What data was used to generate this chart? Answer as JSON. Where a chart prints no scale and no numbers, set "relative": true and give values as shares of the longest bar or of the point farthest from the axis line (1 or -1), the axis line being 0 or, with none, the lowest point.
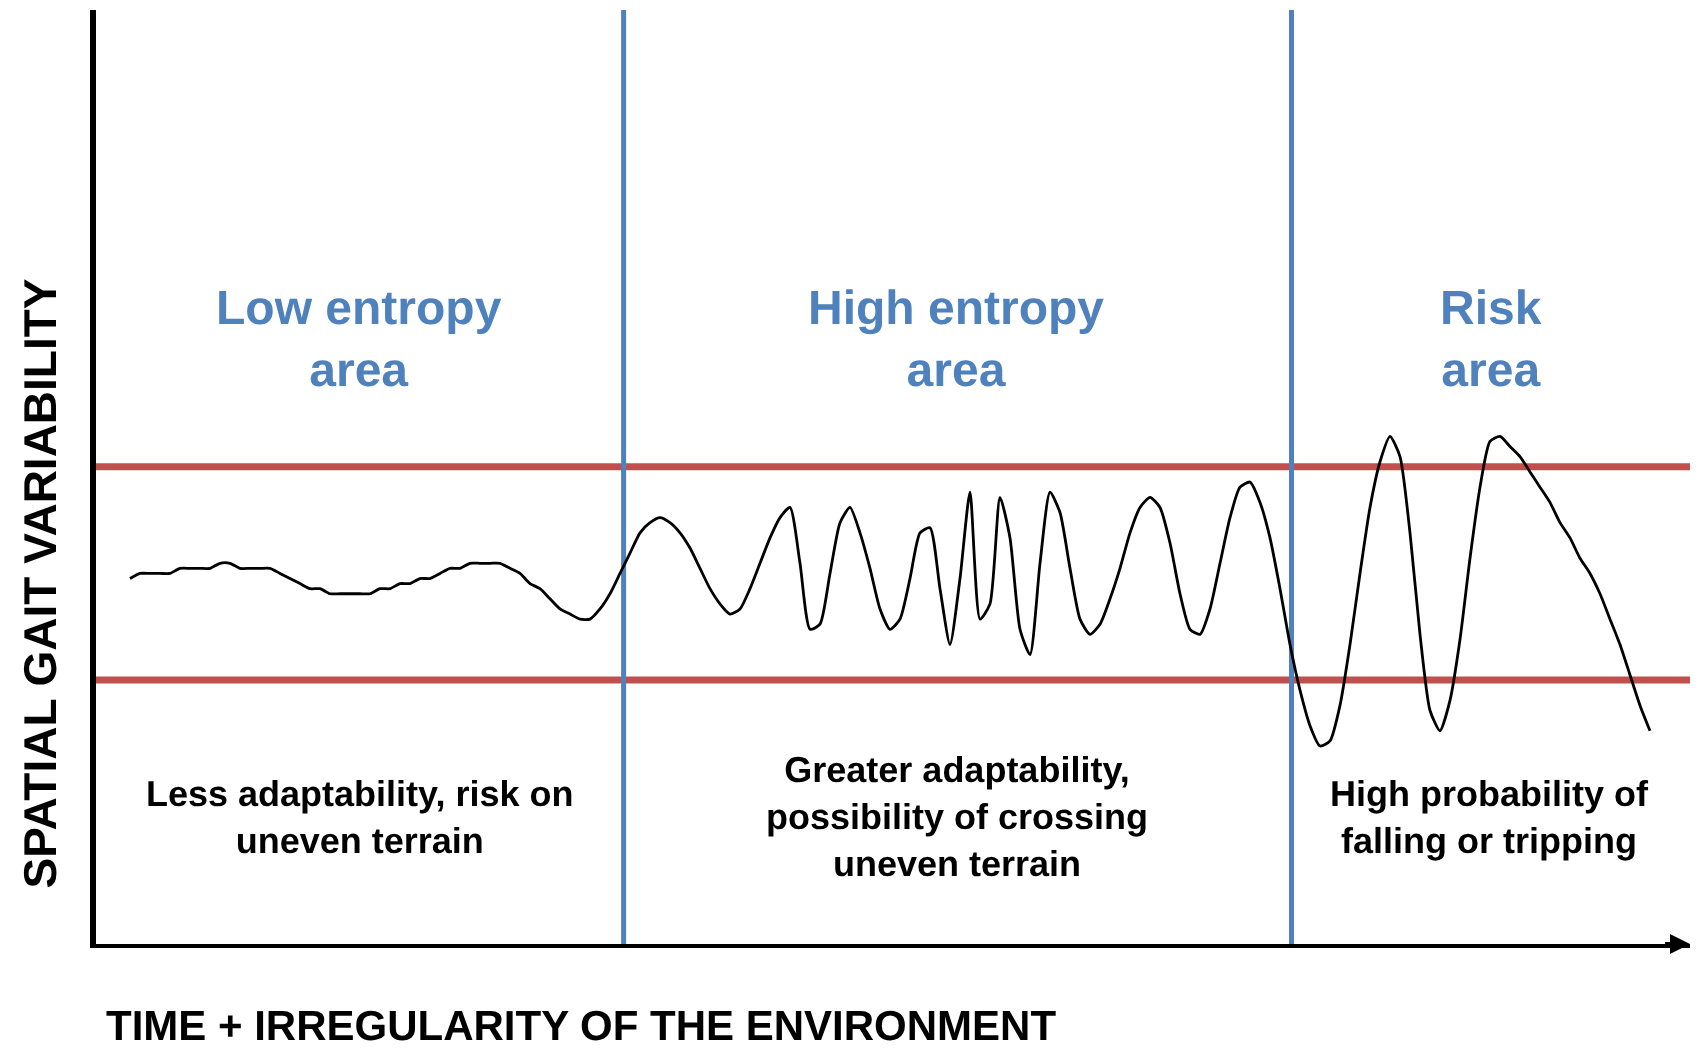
{
  "chart_data": {
    "type": "line",
    "relative": true,
    "xlabel": "TIME + IRREGULARITY OF THE ENVIRONMENT",
    "ylabel": "SPATIAL GAIT VARIABILITY",
    "categories": [
      null,
      null,
      null,
      null,
      null,
      null,
      null,
      null,
      null,
      null,
      null,
      null,
      null,
      null,
      null,
      null,
      null,
      null,
      null,
      null,
      null,
      null,
      null,
      null,
      null,
      null,
      null,
      null,
      null,
      null,
      null,
      null,
      null,
      null,
      null,
      null,
      null,
      null,
      null,
      null,
      null,
      null,
      null,
      null,
      null,
      null,
      null,
      null,
      null,
      null,
      null,
      null,
      null,
      null,
      null,
      null,
      null,
      null,
      null,
      null,
      null,
      null,
      null,
      null,
      null,
      null,
      null,
      null,
      null,
      null,
      null,
      null,
      null,
      null,
      null,
      null,
      null,
      null,
      null,
      null,
      null,
      null,
      null,
      null,
      null,
      null,
      null,
      null,
      null,
      null,
      null,
      null,
      null,
      null,
      null,
      null,
      null,
      null,
      null,
      null,
      null,
      null,
      null,
      null,
      null,
      null,
      null,
      null,
      null,
      null,
      null,
      null,
      null,
      null,
      null,
      null,
      null,
      null,
      null,
      null,
      null,
      null,
      null,
      null,
      null,
      null,
      null,
      null,
      null,
      null,
      null,
      null,
      null,
      null,
      null,
      null,
      null,
      null,
      null,
      null,
      null,
      null,
      null,
      null,
      null,
      null,
      null,
      null,
      null,
      null,
      null,
      null,
      null
    ],
    "color": "#000000",
    "values": [
      0.72,
      0.73,
      0.73,
      0.73,
      0.73,
      0.74,
      0.74,
      0.74,
      0.74,
      0.75,
      0.75,
      0.74,
      0.74,
      0.74,
      0.74,
      0.73,
      0.72,
      0.71,
      0.7,
      0.7,
      0.69,
      0.69,
      0.69,
      0.69,
      0.69,
      0.7,
      0.7,
      0.71,
      0.71,
      0.72,
      0.72,
      0.73,
      0.74,
      0.74,
      0.75,
      0.75,
      0.75,
      0.75,
      0.74,
      0.73,
      0.71,
      0.7,
      0.68,
      0.66,
      0.65,
      0.64,
      0.64,
      0.66,
      0.69,
      0.73,
      0.77,
      0.81,
      0.83,
      0.84,
      0.83,
      0.81,
      0.78,
      0.74,
      0.7,
      0.67,
      0.65,
      0.66,
      0.7,
      0.75,
      0.8,
      0.84,
      0.86,
      0.75,
      0.62,
      0.63,
      0.73,
      0.83,
      0.86,
      0.81,
      0.74,
      0.66,
      0.62,
      0.64,
      0.72,
      0.81,
      0.82,
      0.7,
      0.59,
      0.72,
      0.89,
      0.64,
      0.67,
      0.88,
      0.8,
      0.62,
      0.57,
      0.75,
      0.89,
      0.85,
      0.74,
      0.64,
      0.61,
      0.63,
      0.68,
      0.74,
      0.81,
      0.86,
      0.88,
      0.86,
      0.79,
      0.69,
      0.62,
      0.61,
      0.66,
      0.75,
      0.84,
      0.9,
      0.91,
      0.87,
      0.8,
      0.7,
      0.59,
      0.5,
      0.43,
      0.39,
      0.4,
      0.47,
      0.59,
      0.73,
      0.86,
      0.95,
      1.0,
      0.96,
      0.81,
      0.61,
      0.46,
      0.42,
      0.48,
      0.6,
      0.76,
      0.9,
      0.99,
      1.0,
      0.98,
      0.96,
      0.93,
      0.9,
      0.87,
      0.83,
      0.8,
      0.76,
      0.73,
      0.69,
      0.64,
      0.59,
      0.53,
      0.47,
      0.42
    ],
    "ref_lines": [
      {
        "axis": "y",
        "value": 0.94,
        "color": "#c0504d"
      },
      {
        "axis": "y",
        "value": 0.52,
        "color": "#c0504d"
      }
    ],
    "annotations": [
      "Low entropy\narea",
      "High entropy\narea",
      "Risk\narea",
      "Less adaptability, risk on\nuneven terrain",
      "Greater adaptability,\npossibility of crossing\nuneven terrain",
      "High probability of\nfalling or tripping"
    ]
  }
}
